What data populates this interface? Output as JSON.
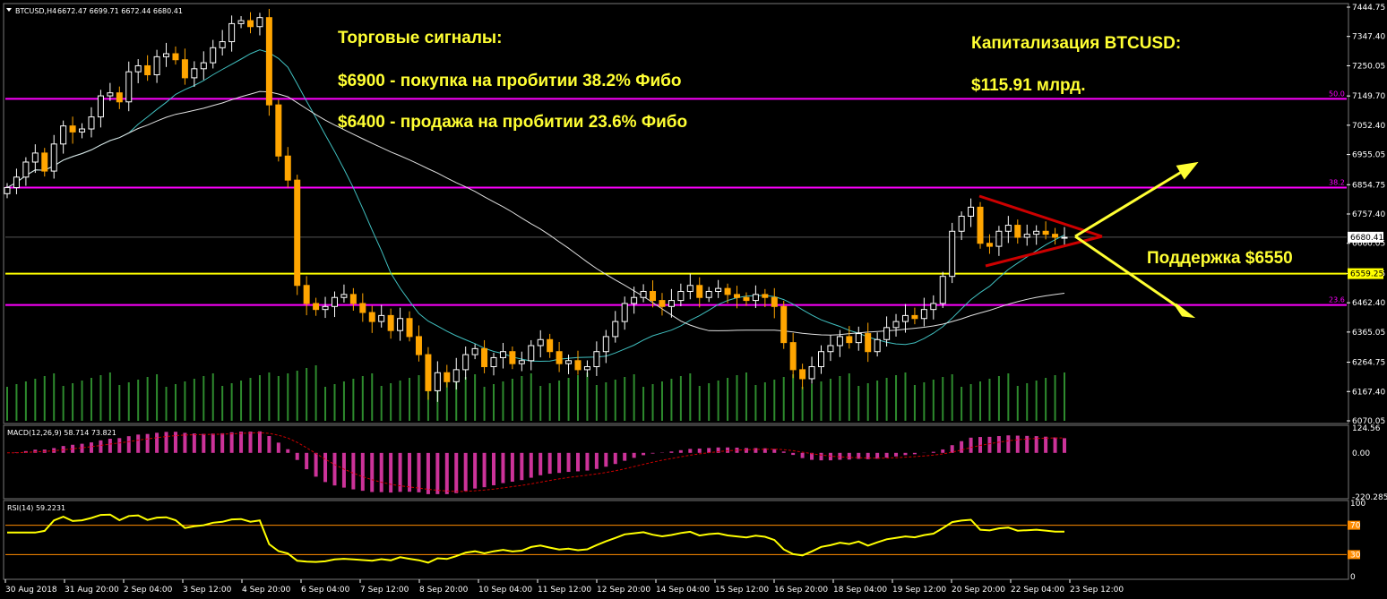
{
  "header": {
    "symbol": "BTCUSD,H4",
    "ohlc": "6672.47 6699.71 6672.44 6680.41"
  },
  "annotations": {
    "signals_title": "Торговые сигналы:",
    "signal_buy": "$6900 - покупка на пробитии 38.2% Фибо",
    "signal_sell": "$6400 - продажа на пробитии 23.6% Фибо",
    "cap_title": "Капитализация BTCUSD:",
    "cap_value": "$115.91 млрд.",
    "support": "Поддержка $6550"
  },
  "colors": {
    "background": "#000000",
    "bull_candle": "#ffffff",
    "bear_candle": "#ffa500",
    "fib_lines": "#ff00ff",
    "support_line": "#ffff00",
    "triangle": "#cc0000",
    "arrows": "#ffff33",
    "ma_fast": "#40c0c0",
    "ma_slow": "#e0e0e0",
    "volume": "#2e8b2e",
    "macd_hist": "#cc3399",
    "rsi_line": "#ffff00",
    "rsi_levels": "#ff8c00"
  },
  "chart_data": [
    {
      "type": "candlestick",
      "title": "BTCUSD,H4",
      "y_ticks": [
        "7444.75",
        "7347.40",
        "7250.05",
        "7149.70",
        "7052.40",
        "6955.05",
        "6854.75",
        "6757.40",
        "6660.05",
        "6559.25",
        "6462.40",
        "6365.05",
        "6264.75",
        "6167.40",
        "6070.05"
      ],
      "ylim": [
        6070.05,
        7444.75
      ],
      "x_ticks": [
        "30 Aug 2018",
        "31 Aug 20:00",
        "2 Sep 04:00",
        "3 Sep 12:00",
        "4 Sep 20:00",
        "6 Sep 04:00",
        "7 Sep 12:00",
        "8 Sep 20:00",
        "10 Sep 04:00",
        "11 Sep 12:00",
        "12 Sep 20:00",
        "14 Sep 04:00",
        "15 Sep 12:00",
        "16 Sep 20:00",
        "18 Sep 04:00",
        "19 Sep 12:00",
        "20 Sep 20:00",
        "22 Sep 04:00",
        "23 Sep 12:00"
      ],
      "current_price": "6680.41",
      "support_level": 6559.25,
      "fib_levels": [
        {
          "label": "50.0",
          "value": 7140
        },
        {
          "label": "38.2",
          "value": 6845
        },
        {
          "label": "23.6",
          "value": 6455
        }
      ],
      "closes": [
        6845,
        6880,
        6930,
        6960,
        6900,
        6990,
        7050,
        7030,
        7040,
        7080,
        7150,
        7160,
        7130,
        7230,
        7250,
        7220,
        7280,
        7290,
        7270,
        7210,
        7240,
        7260,
        7310,
        7330,
        7390,
        7400,
        7380,
        7410,
        7120,
        6950,
        6870,
        6520,
        6460,
        6440,
        6450,
        6480,
        6490,
        6460,
        6430,
        6400,
        6420,
        6370,
        6410,
        6350,
        6290,
        6170,
        6230,
        6200,
        6240,
        6290,
        6310,
        6250,
        6280,
        6300,
        6260,
        6270,
        6320,
        6340,
        6300,
        6260,
        6270,
        6240,
        6250,
        6300,
        6350,
        6400,
        6460,
        6480,
        6500,
        6470,
        6450,
        6470,
        6500,
        6520,
        6480,
        6500,
        6510,
        6490,
        6480,
        6470,
        6490,
        6480,
        6450,
        6330,
        6240,
        6210,
        6250,
        6300,
        6320,
        6350,
        6330,
        6360,
        6300,
        6340,
        6380,
        6400,
        6420,
        6410,
        6440,
        6460,
        6550,
        6700,
        6750,
        6780,
        6660,
        6650,
        6700,
        6720,
        6680,
        6690,
        6700,
        6690,
        6680,
        6680
      ],
      "volume_label": "Volume"
    },
    {
      "type": "bar",
      "title": "MACD(12,26,9) 58.714 73.821",
      "y_ticks": [
        "124.56",
        "0.00",
        "-220.285"
      ],
      "ylim": [
        -220.285,
        124.56
      ],
      "macd_value": 58.714,
      "signal_value": 73.821
    },
    {
      "type": "line",
      "title": "RSI(14) 59.2231",
      "y_ticks": [
        "100",
        "70",
        "30",
        "0"
      ],
      "ylim": [
        0,
        100
      ],
      "levels": [
        70,
        30
      ],
      "rsi_value": 59.2231
    }
  ]
}
